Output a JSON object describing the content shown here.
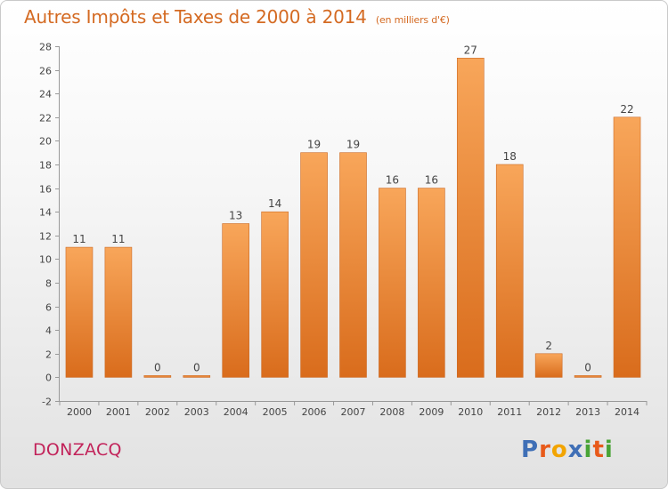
{
  "header": {
    "title": "Autres Impôts et Taxes de 2000 à 2014",
    "subtitle": "(en milliers d'€)"
  },
  "footer": {
    "place": "DONZACQ",
    "logo_text": "Proxiti",
    "logo_colors": [
      "#3f6fb6",
      "#e85a1a",
      "#f2a400",
      "#3f6fb6",
      "#49a436",
      "#e85a1a",
      "#49a436"
    ]
  },
  "colors": {
    "bar_light": "#f8a65a",
    "bar_dark": "#d96c1c",
    "title": "#d46a22",
    "place": "#c2235a"
  },
  "chart_data": {
    "type": "bar",
    "title": "Autres Impôts et Taxes de 2000 à 2014",
    "subtitle": "(en milliers d'€)",
    "categories": [
      "2000",
      "2001",
      "2002",
      "2003",
      "2004",
      "2005",
      "2006",
      "2007",
      "2008",
      "2009",
      "2010",
      "2011",
      "2012",
      "2013",
      "2014"
    ],
    "values": [
      11,
      11,
      0,
      0,
      13,
      14,
      19,
      19,
      16,
      16,
      27,
      18,
      2,
      0,
      22
    ],
    "data_labels": [
      "11",
      "11",
      "0",
      "0",
      "13",
      "14",
      "19",
      "19",
      "16",
      "16",
      "27",
      "18",
      "2",
      "0",
      "22"
    ],
    "ylim": [
      -2,
      28
    ],
    "yticks": [
      -2,
      0,
      2,
      4,
      6,
      8,
      10,
      12,
      14,
      16,
      18,
      20,
      22,
      24,
      26,
      28
    ],
    "grid": false
  }
}
